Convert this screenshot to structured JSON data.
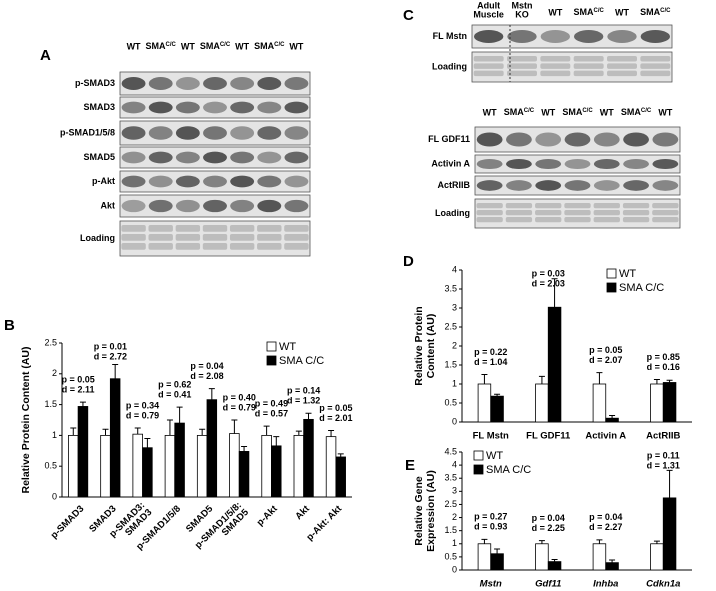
{
  "chart_data": [
    {
      "panel": "B",
      "type": "bar",
      "ylabel": "Relative Protein Content (AU)",
      "categories": [
        "p-SMAD3",
        "SMAD3",
        "p-SMAD3: SMAD3",
        "p-SMAD1/5/8",
        "SMAD5",
        "p-SMAD1/5/8: SMAD5",
        "p-Akt",
        "Akt",
        "p-Akt: Akt"
      ],
      "series": [
        {
          "name": "WT",
          "color": "#ffffff",
          "values": [
            1.0,
            1.0,
            1.02,
            1.0,
            1.0,
            1.03,
            1.0,
            1.0,
            0.98
          ],
          "errors": [
            0.12,
            0.1,
            0.1,
            0.25,
            0.1,
            0.22,
            0.15,
            0.07,
            0.1
          ]
        },
        {
          "name": "SMA C/C",
          "color": "#000000",
          "values": [
            1.47,
            1.92,
            0.8,
            1.2,
            1.58,
            0.74,
            0.83,
            1.26,
            0.65
          ],
          "errors": [
            0.07,
            0.23,
            0.15,
            0.26,
            0.18,
            0.08,
            0.15,
            0.1,
            0.05
          ]
        }
      ],
      "annotations": [
        {
          "p": "p = 0.05",
          "d": "d = 2.11"
        },
        {
          "p": "p = 0.01",
          "d": "d = 2.72"
        },
        {
          "p": "p = 0.34",
          "d": "d = 0.79"
        },
        {
          "p": "p = 0.62",
          "d": "d = 0.41"
        },
        {
          "p": "p = 0.04",
          "d": "d = 2.08"
        },
        {
          "p": "p = 0.40",
          "d": "d = 0.79"
        },
        {
          "p": "p = 0.49",
          "d": "d = 0.57"
        },
        {
          "p": "p = 0.14",
          "d": "d = 1.32"
        },
        {
          "p": "p = 0.05",
          "d": "d = 2.01"
        }
      ],
      "ylim": [
        0,
        2.5
      ],
      "yticks": [
        0,
        0.5,
        1,
        1.5,
        2,
        2.5
      ],
      "legend": "top-right"
    },
    {
      "panel": "D",
      "type": "bar",
      "ylabel": "Relative Protein Content (AU)",
      "categories": [
        "FL Mstn",
        "FL GDF11",
        "Activin A",
        "ActRIIB"
      ],
      "series": [
        {
          "name": "WT",
          "color": "#ffffff",
          "values": [
            1.0,
            1.0,
            1.0,
            1.0
          ],
          "errors": [
            0.25,
            0.2,
            0.3,
            0.12
          ]
        },
        {
          "name": "SMA C/C",
          "color": "#000000",
          "values": [
            0.68,
            3.02,
            0.1,
            1.04
          ],
          "errors": [
            0.05,
            0.75,
            0.07,
            0.06
          ]
        }
      ],
      "annotations": [
        {
          "p": "p = 0.22",
          "d": "d = 1.04"
        },
        {
          "p": "p = 0.03",
          "d": "d = 2.03"
        },
        {
          "p": "p = 0.05",
          "d": "d = 2.07"
        },
        {
          "p": "p = 0.85",
          "d": "d = 0.16"
        }
      ],
      "ylim": [
        0,
        4
      ],
      "yticks": [
        0,
        0.5,
        1,
        1.5,
        2,
        2.5,
        3,
        3.5,
        4
      ],
      "legend": "top-right"
    },
    {
      "panel": "E",
      "type": "bar",
      "ylabel": "Relative Gene Expression (AU)",
      "categories": [
        "Mstn",
        "Gdf11",
        "Inhba",
        "Cdkn1a"
      ],
      "series": [
        {
          "name": "WT",
          "color": "#ffffff",
          "values": [
            1.0,
            1.0,
            1.0,
            1.0
          ],
          "errors": [
            0.17,
            0.12,
            0.15,
            0.1
          ]
        },
        {
          "name": "SMA C/C",
          "color": "#000000",
          "values": [
            0.62,
            0.32,
            0.28,
            2.75
          ],
          "errors": [
            0.18,
            0.08,
            0.1,
            1.05
          ]
        }
      ],
      "annotations": [
        {
          "p": "p = 0.27",
          "d": "d = 0.93"
        },
        {
          "p": "p = 0.04",
          "d": "d = 2.25"
        },
        {
          "p": "p = 0.04",
          "d": "d = 2.27"
        },
        {
          "p": "p = 0.11",
          "d": "d = 1.31"
        }
      ],
      "ylim": [
        0,
        4.5
      ],
      "yticks": [
        0,
        0.5,
        1,
        1.5,
        2,
        2.5,
        3,
        3.5,
        4,
        4.5
      ],
      "legend": "top-left"
    }
  ],
  "blots": [
    {
      "panel": "A",
      "lanes": [
        {
          "text": "WT"
        },
        {
          "text": "SMA",
          "sup": "C/C"
        },
        {
          "text": "WT"
        },
        {
          "text": "SMA",
          "sup": "C/C"
        },
        {
          "text": "WT"
        },
        {
          "text": "SMA",
          "sup": "C/C"
        },
        {
          "text": "WT"
        }
      ],
      "rows": [
        "p-SMAD3",
        "SMAD3",
        "p-SMAD1/5/8",
        "SMAD5",
        "p-Akt",
        "Akt",
        "Loading"
      ]
    },
    {
      "panel": "C",
      "lanes": [
        {
          "text": "Adult Muscle"
        },
        {
          "text": "Mstn KO"
        },
        {
          "text": "WT"
        },
        {
          "text": "SMA",
          "sup": "C/C"
        },
        {
          "text": "WT"
        },
        {
          "text": "SMA",
          "sup": "C/C"
        }
      ],
      "rows": [
        "FL Mstn",
        "Loading"
      ]
    },
    {
      "lanes": [
        {
          "text": "WT"
        },
        {
          "text": "SMA",
          "sup": "C/C"
        },
        {
          "text": "WT"
        },
        {
          "text": "SMA",
          "sup": "C/C"
        },
        {
          "text": "WT"
        },
        {
          "text": "SMA",
          "sup": "C/C"
        },
        {
          "text": "WT"
        }
      ],
      "rows": [
        "FL GDF11",
        "Activin A",
        "ActRIIB",
        "Loading"
      ]
    }
  ]
}
